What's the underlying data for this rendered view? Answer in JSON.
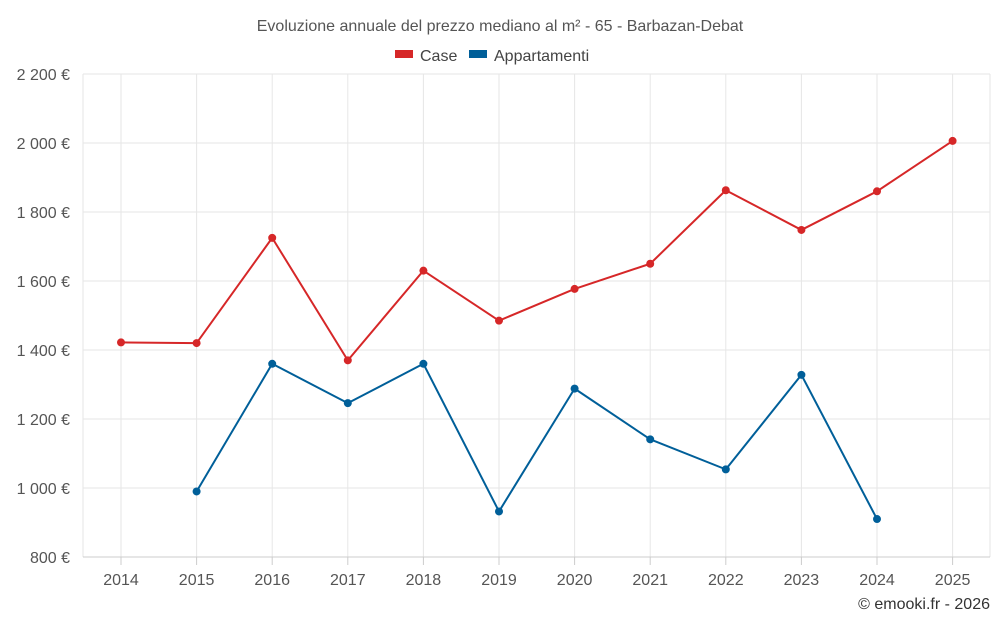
{
  "chart_data": {
    "type": "line",
    "title": "Evoluzione annuale del prezzo mediano al m² - 65 - Barbazan-Debat",
    "xlabel": "",
    "ylabel": "",
    "categories": [
      "2014",
      "2015",
      "2016",
      "2017",
      "2018",
      "2019",
      "2020",
      "2021",
      "2022",
      "2023",
      "2024",
      "2025"
    ],
    "ylim": [
      800,
      2200
    ],
    "yticks": [
      800,
      1000,
      1200,
      1400,
      1600,
      1800,
      2000,
      2200
    ],
    "ytick_labels": [
      "800 €",
      "1 000 €",
      "1 200 €",
      "1 400 €",
      "1 600 €",
      "1 800 €",
      "2 000 €",
      "2 200 €"
    ],
    "grid": true,
    "legend_position": "top-center",
    "series": [
      {
        "name": "Case",
        "color": "#d62728",
        "values": [
          1422,
          1420,
          1725,
          1370,
          1630,
          1485,
          1577,
          1650,
          1863,
          1748,
          1860,
          2006
        ]
      },
      {
        "name": "Appartamenti",
        "color": "#005f99",
        "values": [
          null,
          990,
          1360,
          1246,
          1360,
          932,
          1288,
          1141,
          1054,
          1328,
          910,
          null
        ]
      }
    ],
    "credit": "© emooki.fr - 2026"
  }
}
